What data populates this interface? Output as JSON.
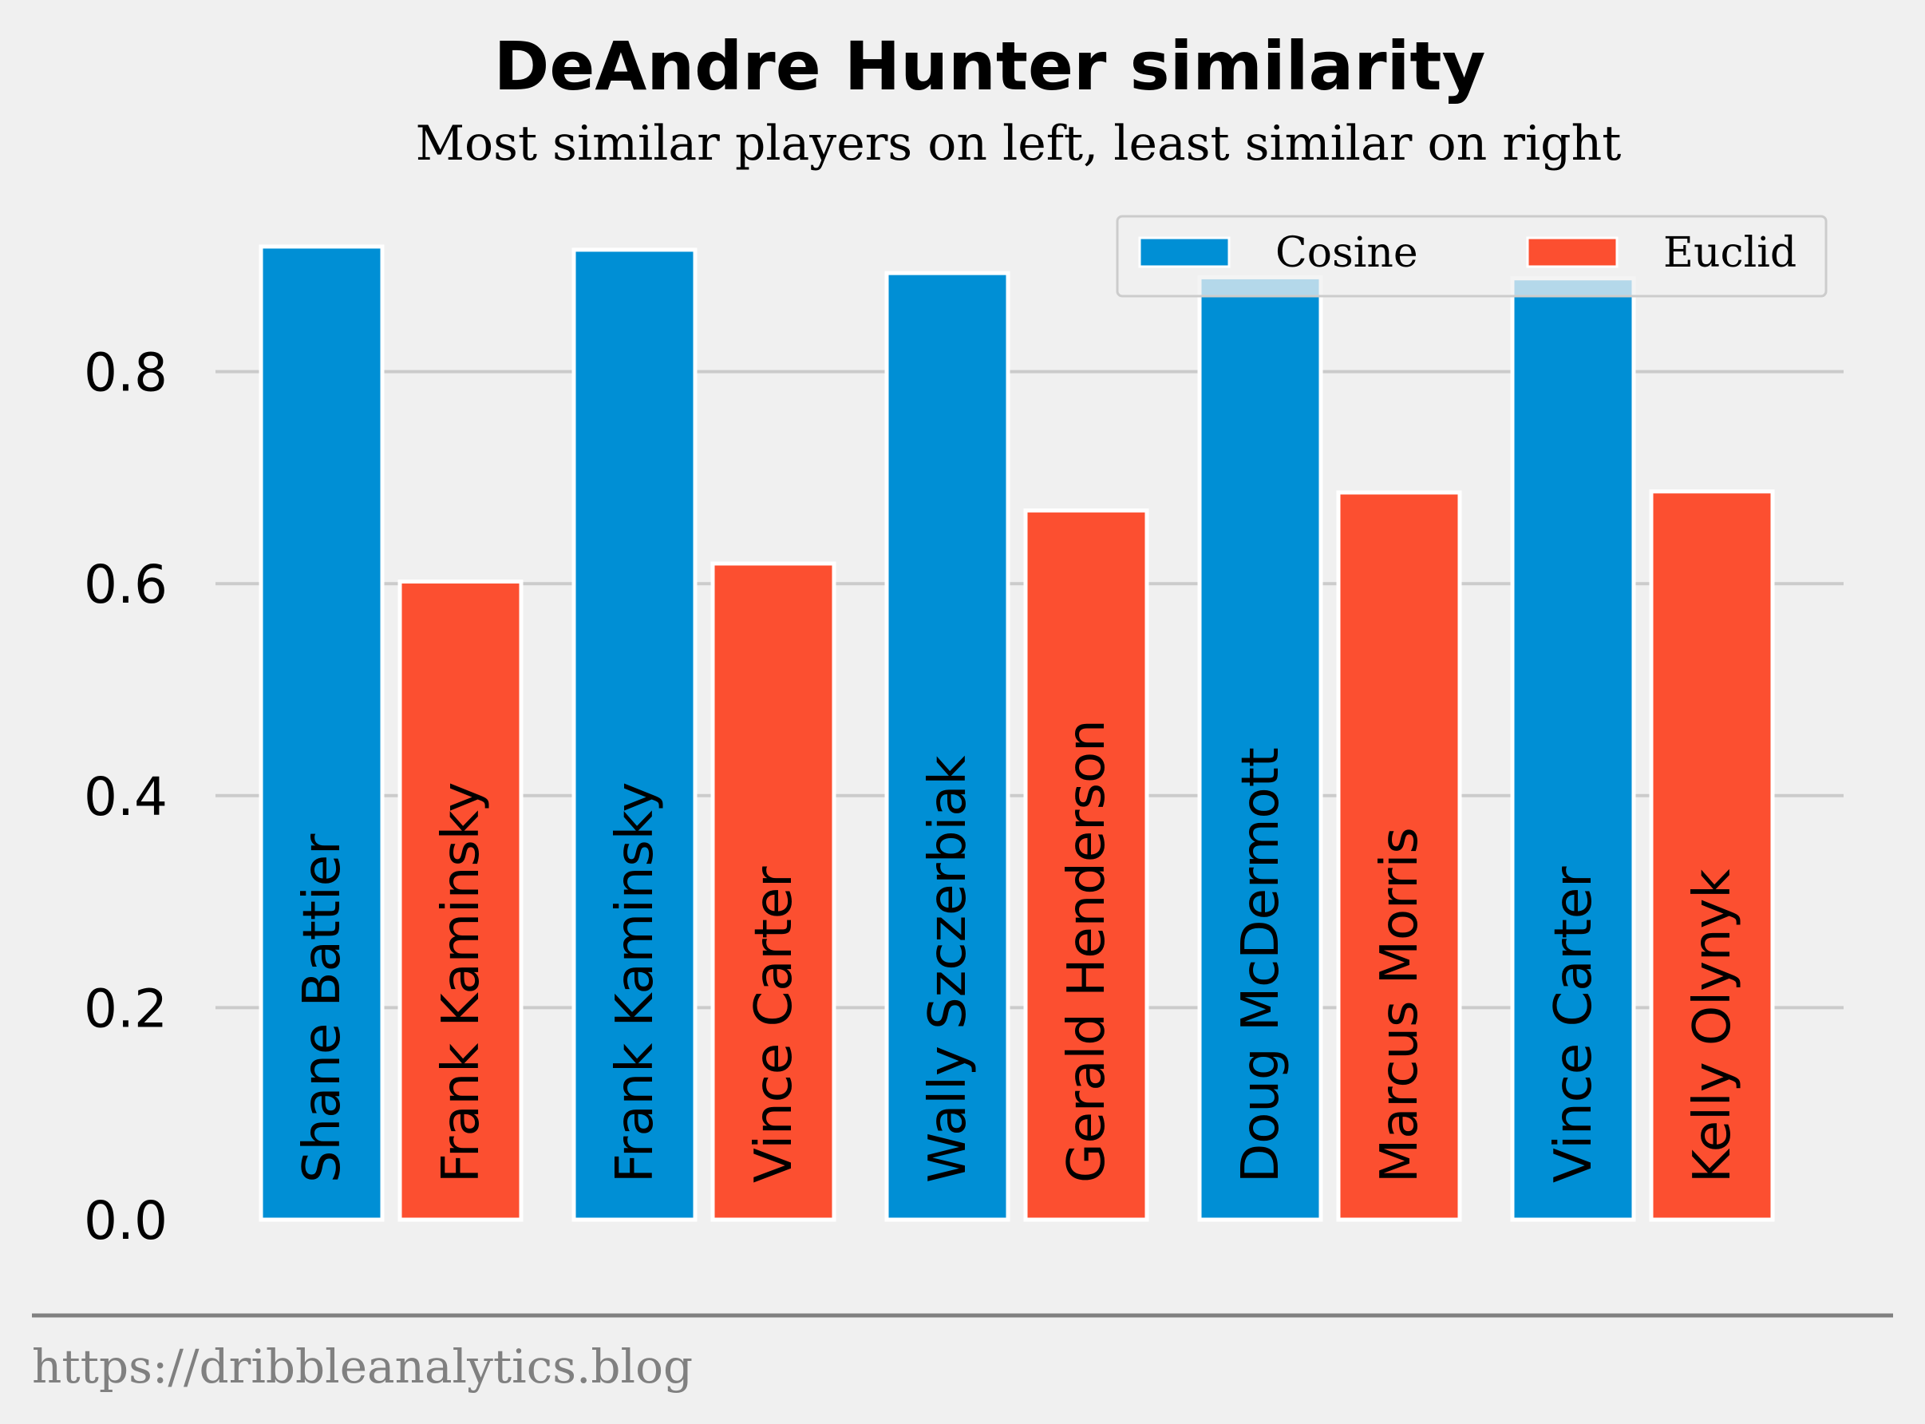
{
  "chart_data": {
    "type": "bar",
    "title": "DeAndre Hunter similarity",
    "subtitle": "Most similar players on left, least similar on right",
    "yticks": [
      "0.0",
      "0.2",
      "0.4",
      "0.6",
      "0.8"
    ],
    "ylim": [
      0,
      1.0
    ],
    "grid": true,
    "legend_position": "top-right",
    "series": [
      {
        "name": "Cosine",
        "color": "#008fd5",
        "labels": [
          "Shane Battier",
          "Frank Kaminsky",
          "Wally Szczerbiak",
          "Doug McDermott",
          "Vince Carter"
        ],
        "values": [
          0.918,
          0.915,
          0.893,
          0.889,
          0.888
        ]
      },
      {
        "name": "Euclid",
        "color": "#fc4f30",
        "labels": [
          "Frank Kaminsky",
          "Vince Carter",
          "Gerald Henderson",
          "Marcus Morris",
          "Kelly Olynyk"
        ],
        "values": [
          0.602,
          0.619,
          0.669,
          0.686,
          0.687
        ]
      }
    ]
  },
  "footer": "https://dribbleanalytics.blog"
}
